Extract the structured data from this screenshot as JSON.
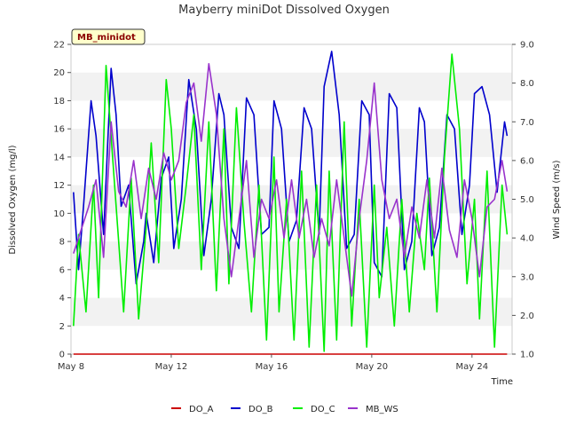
{
  "chart_data": {
    "type": "line",
    "title": "Mayberry miniDot Dissolved Oxygen",
    "badge": "MB_minidot",
    "xlabel": "Time",
    "ylabel": "Dissolved Oxygen (mg/l)",
    "y2label": "Wind Speed (m/s)",
    "xlim": [
      8,
      25.6
    ],
    "ylim": [
      0,
      22
    ],
    "y2lim": [
      1.0,
      9.0
    ],
    "x_ticks": [
      {
        "value": 8,
        "label": "May 8"
      },
      {
        "value": 12,
        "label": "May 12"
      },
      {
        "value": 16,
        "label": "May 16"
      },
      {
        "value": 20,
        "label": "May 20"
      },
      {
        "value": 24,
        "label": "May 24"
      }
    ],
    "y_ticks": [
      0,
      2,
      4,
      6,
      8,
      10,
      12,
      14,
      16,
      18,
      20,
      22
    ],
    "y2_ticks": [
      "1.0",
      "2.0",
      "3.0",
      "4.0",
      "5.0",
      "6.0",
      "7.0",
      "8.0",
      "9.0"
    ],
    "grid": "horizontal alternating bands",
    "legend_position": "bottom-center",
    "series": [
      {
        "name": "DO_A",
        "axis": "left",
        "color": "#cc0000",
        "x": [
          8.1,
          25.4
        ],
        "y": [
          0.0,
          0.0
        ]
      },
      {
        "name": "DO_B",
        "axis": "left",
        "color": "#0000cc",
        "x": [
          8.1,
          8.3,
          8.5,
          8.8,
          9.0,
          9.3,
          9.6,
          9.8,
          10.0,
          10.3,
          10.6,
          10.9,
          11.0,
          11.3,
          11.6,
          11.9,
          12.1,
          12.4,
          12.7,
          13.0,
          13.3,
          13.6,
          13.9,
          14.1,
          14.4,
          14.7,
          15.0,
          15.3,
          15.6,
          15.9,
          16.1,
          16.4,
          16.7,
          17.0,
          17.3,
          17.6,
          17.9,
          18.1,
          18.4,
          18.7,
          19.0,
          19.3,
          19.6,
          19.9,
          20.1,
          20.4,
          20.7,
          21.0,
          21.3,
          21.6,
          21.9,
          22.1,
          22.4,
          22.7,
          23.0,
          23.3,
          23.6,
          23.9,
          24.1,
          24.4,
          24.7,
          25.0,
          25.3,
          25.4
        ],
        "y": [
          11.5,
          6.0,
          10.5,
          18.0,
          15.5,
          8.5,
          20.3,
          17.0,
          10.5,
          12.0,
          5.0,
          8.0,
          10.0,
          6.5,
          12.5,
          14.0,
          7.5,
          11.0,
          19.5,
          16.0,
          7.0,
          11.0,
          18.5,
          17.0,
          9.0,
          7.5,
          18.2,
          17.0,
          8.5,
          9.0,
          18.0,
          16.0,
          8.0,
          9.5,
          17.5,
          16.0,
          8.5,
          19.0,
          21.5,
          17.0,
          7.5,
          8.5,
          18.0,
          17.0,
          6.5,
          5.5,
          18.5,
          17.5,
          6.0,
          8.0,
          17.5,
          16.5,
          7.0,
          9.0,
          17.0,
          16.0,
          8.5,
          12.0,
          18.5,
          19.0,
          17.0,
          11.5,
          16.5,
          15.5
        ]
      },
      {
        "name": "DO_C",
        "axis": "left",
        "color": "#00ee00",
        "x": [
          8.1,
          8.3,
          8.6,
          8.9,
          9.1,
          9.4,
          9.7,
          9.9,
          10.1,
          10.4,
          10.7,
          11.0,
          11.2,
          11.5,
          11.8,
          12.0,
          12.3,
          12.6,
          12.9,
          13.2,
          13.5,
          13.8,
          14.1,
          14.3,
          14.6,
          14.9,
          15.2,
          15.5,
          15.8,
          16.1,
          16.3,
          16.6,
          16.9,
          17.2,
          17.5,
          17.8,
          18.1,
          18.3,
          18.6,
          18.9,
          19.2,
          19.5,
          19.8,
          20.1,
          20.3,
          20.6,
          20.9,
          21.2,
          21.5,
          21.8,
          22.1,
          22.3,
          22.6,
          22.9,
          23.2,
          23.5,
          23.8,
          24.1,
          24.3,
          24.6,
          24.9,
          25.2,
          25.4
        ],
        "y": [
          2.0,
          8.5,
          3.0,
          12.0,
          4.0,
          20.5,
          13.0,
          8.0,
          3.0,
          12.5,
          2.5,
          9.0,
          15.0,
          6.5,
          19.5,
          16.0,
          7.5,
          12.0,
          17.0,
          6.0,
          16.5,
          4.5,
          16.0,
          5.0,
          17.5,
          9.5,
          3.0,
          12.0,
          1.0,
          14.0,
          3.0,
          11.0,
          1.0,
          13.0,
          0.5,
          12.0,
          0.2,
          13.0,
          1.0,
          16.5,
          2.0,
          11.0,
          0.5,
          12.0,
          4.0,
          9.0,
          2.0,
          11.0,
          3.0,
          10.0,
          6.0,
          12.5,
          3.0,
          14.0,
          21.3,
          16.0,
          5.0,
          11.0,
          2.5,
          13.0,
          0.5,
          12.0,
          8.5
        ]
      },
      {
        "name": "MB_WS",
        "axis": "right",
        "color": "#9933cc",
        "x": [
          8.1,
          8.4,
          8.7,
          9.0,
          9.3,
          9.6,
          9.9,
          10.2,
          10.5,
          10.8,
          11.1,
          11.4,
          11.7,
          12.0,
          12.3,
          12.6,
          12.9,
          13.2,
          13.5,
          13.8,
          14.1,
          14.4,
          14.7,
          15.0,
          15.3,
          15.6,
          15.9,
          16.2,
          16.5,
          16.8,
          17.1,
          17.4,
          17.7,
          18.0,
          18.3,
          18.6,
          18.9,
          19.2,
          19.5,
          19.8,
          20.1,
          20.4,
          20.7,
          21.0,
          21.3,
          21.6,
          21.9,
          22.2,
          22.5,
          22.8,
          23.1,
          23.4,
          23.7,
          24.0,
          24.3,
          24.6,
          24.9,
          25.2,
          25.4
        ],
        "y": [
          3.6,
          4.2,
          4.8,
          5.5,
          3.5,
          7.0,
          5.2,
          4.8,
          6.0,
          4.5,
          5.8,
          5.0,
          6.2,
          5.5,
          6.0,
          7.5,
          8.0,
          6.5,
          8.5,
          7.2,
          4.5,
          3.0,
          4.5,
          6.0,
          3.5,
          5.0,
          4.5,
          5.5,
          4.0,
          5.5,
          4.0,
          5.0,
          3.5,
          4.5,
          3.8,
          5.5,
          4.0,
          2.5,
          4.5,
          6.0,
          8.0,
          5.5,
          4.5,
          5.0,
          3.5,
          4.8,
          4.0,
          5.5,
          4.0,
          5.8,
          4.2,
          3.5,
          5.5,
          4.5,
          3.0,
          4.8,
          5.0,
          6.0,
          5.2
        ]
      }
    ]
  }
}
